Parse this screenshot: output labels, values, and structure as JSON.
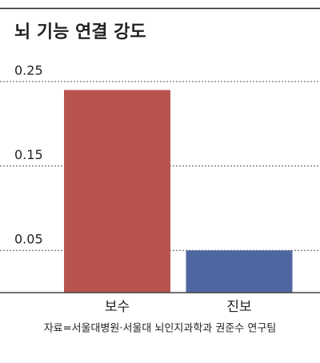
{
  "chart_data": {
    "type": "bar",
    "title": "뇌 기능 연결 강도",
    "categories": [
      "보수",
      "진보"
    ],
    "values": [
      0.24,
      0.05
    ],
    "colors": [
      "#b85450",
      "#4f67a0"
    ],
    "ylim": [
      0,
      0.25
    ],
    "yticks": [
      0.05,
      0.15,
      0.25
    ],
    "grid": true,
    "source": "자료=서울대병원·서울대 뇌인지과학과 권준수 연구팀"
  }
}
